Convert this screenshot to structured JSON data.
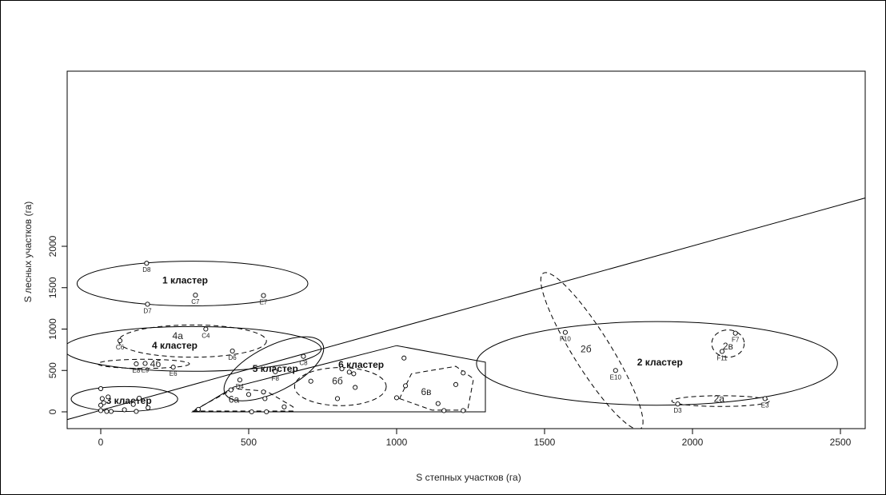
{
  "chart_data": {
    "type": "scatter",
    "xlabel": "S степных участков (га)",
    "ylabel": "S лесных участков (га)",
    "xlim": [
      -120,
      2600
    ],
    "ylim": [
      -100,
      2080
    ],
    "xticks": [
      "0",
      "500",
      "1000",
      "1500",
      "2000",
      "2500"
    ],
    "yticks": [
      "0",
      "500",
      "1000",
      "1500",
      "2000"
    ],
    "diagonal": [
      [
        -120,
        -100
      ],
      [
        2600,
        2600
      ]
    ],
    "points": [
      {
        "x": 155,
        "y": 1795,
        "label": "D8"
      },
      {
        "x": 320,
        "y": 1410,
        "label": "C7"
      },
      {
        "x": 550,
        "y": 1405,
        "label": "E7"
      },
      {
        "x": 158,
        "y": 1300,
        "label": "D7"
      },
      {
        "x": 355,
        "y": 1000,
        "label": "C4"
      },
      {
        "x": 65,
        "y": 860,
        "label": "C6"
      },
      {
        "x": 445,
        "y": 735,
        "label": "D6"
      },
      {
        "x": 120,
        "y": 580,
        "label": "E8"
      },
      {
        "x": 150,
        "y": 585,
        "label": "E9"
      },
      {
        "x": 245,
        "y": 540,
        "label": "E6"
      },
      {
        "x": 685,
        "y": 670,
        "label": "C8"
      },
      {
        "x": 590,
        "y": 485,
        "label": "F8"
      },
      {
        "x": 470,
        "y": 385,
        "label": "D4"
      },
      {
        "x": 1570,
        "y": 960,
        "label": "F10"
      },
      {
        "x": 2145,
        "y": 950,
        "label": "F7"
      },
      {
        "x": 2100,
        "y": 730,
        "label": "F11"
      },
      {
        "x": 1740,
        "y": 500,
        "label": "E10"
      },
      {
        "x": 1950,
        "y": 95,
        "label": "D3"
      },
      {
        "x": 2245,
        "y": 160,
        "label": "E3"
      },
      {
        "x": 0,
        "y": 280,
        "label": ""
      },
      {
        "x": 25,
        "y": 180,
        "label": ""
      },
      {
        "x": 5,
        "y": 160,
        "label": ""
      },
      {
        "x": 130,
        "y": 165,
        "label": ""
      },
      {
        "x": 10,
        "y": 110,
        "label": ""
      },
      {
        "x": 0,
        "y": 80,
        "label": ""
      },
      {
        "x": 110,
        "y": 90,
        "label": ""
      },
      {
        "x": 160,
        "y": 50,
        "label": ""
      },
      {
        "x": 80,
        "y": 25,
        "label": ""
      },
      {
        "x": 0,
        "y": 15,
        "label": ""
      },
      {
        "x": 20,
        "y": 5,
        "label": ""
      },
      {
        "x": 35,
        "y": 5,
        "label": ""
      },
      {
        "x": 120,
        "y": 5,
        "label": ""
      },
      {
        "x": 440,
        "y": 265,
        "label": ""
      },
      {
        "x": 550,
        "y": 240,
        "label": ""
      },
      {
        "x": 500,
        "y": 210,
        "label": ""
      },
      {
        "x": 555,
        "y": 160,
        "label": ""
      },
      {
        "x": 620,
        "y": 60,
        "label": ""
      },
      {
        "x": 330,
        "y": 30,
        "label": ""
      },
      {
        "x": 510,
        "y": 0,
        "label": ""
      },
      {
        "x": 560,
        "y": 0,
        "label": ""
      },
      {
        "x": 815,
        "y": 520,
        "label": ""
      },
      {
        "x": 840,
        "y": 480,
        "label": ""
      },
      {
        "x": 855,
        "y": 460,
        "label": ""
      },
      {
        "x": 710,
        "y": 370,
        "label": ""
      },
      {
        "x": 860,
        "y": 295,
        "label": ""
      },
      {
        "x": 800,
        "y": 160,
        "label": ""
      },
      {
        "x": 1025,
        "y": 650,
        "label": ""
      },
      {
        "x": 1030,
        "y": 315,
        "label": ""
      },
      {
        "x": 1000,
        "y": 170,
        "label": ""
      },
      {
        "x": 1140,
        "y": 100,
        "label": ""
      },
      {
        "x": 1160,
        "y": 15,
        "label": ""
      },
      {
        "x": 1225,
        "y": 470,
        "label": ""
      },
      {
        "x": 1200,
        "y": 330,
        "label": ""
      },
      {
        "x": 1225,
        "y": 15,
        "label": ""
      }
    ],
    "clusters": [
      {
        "label": "1 кластер",
        "shape": "ellipse",
        "style": "solid",
        "cx": 310,
        "cy": 1550,
        "rx": 390,
        "ry": 270,
        "text_at": [
          285,
          1590
        ],
        "bold": true
      },
      {
        "label": "4 кластер",
        "shape": "ellipse",
        "style": "solid",
        "cx": 310,
        "cy": 760,
        "rx": 435,
        "ry": 270,
        "text_at": [
          250,
          800
        ],
        "bold": true
      },
      {
        "label": "4а",
        "shape": "ellipse",
        "style": "dashed",
        "cx": 310,
        "cy": 855,
        "rx": 250,
        "ry": 195,
        "text_at": [
          260,
          920
        ],
        "bold": false
      },
      {
        "label": "4б",
        "shape": "ellipse",
        "style": "dashed",
        "cx": 145,
        "cy": 580,
        "rx": 155,
        "ry": 55,
        "text_at": [
          185,
          580
        ],
        "bold": false
      },
      {
        "label": "3 кластер",
        "shape": "ellipse",
        "style": "solid",
        "cx": 80,
        "cy": 155,
        "rx": 180,
        "ry": 150,
        "text_at": [
          95,
          135
        ],
        "bold": true
      },
      {
        "label": "5 кластер",
        "shape": "ellipse_rot",
        "style": "solid",
        "cx": 585,
        "cy": 520,
        "rx": 185,
        "ry": 85,
        "rot": -27,
        "text_at": [
          590,
          520
        ],
        "bold": true
      },
      {
        "label": "6 кластер",
        "shape": "polygon",
        "style": "solid",
        "pts": [
          [
            310,
            0
          ],
          [
            1300,
            0
          ],
          [
            1300,
            600
          ],
          [
            1000,
            800
          ],
          [
            450,
            300
          ]
        ],
        "text_at": [
          880,
          570
        ],
        "bold": true
      },
      {
        "label": "6а",
        "shape": "polygon",
        "style": "dashed",
        "pts": [
          [
            310,
            10
          ],
          [
            650,
            10
          ],
          [
            650,
            60
          ],
          [
            560,
            250
          ],
          [
            450,
            280
          ]
        ],
        "text_at": [
          450,
          150
        ],
        "bold": false
      },
      {
        "label": "6б",
        "shape": "ellipse",
        "style": "dashed",
        "cx": 810,
        "cy": 305,
        "rx": 155,
        "ry": 230,
        "text_at": [
          800,
          370
        ],
        "bold": false
      },
      {
        "label": "6в",
        "shape": "polygon",
        "style": "dashed",
        "pts": [
          [
            1010,
            160
          ],
          [
            1120,
            20
          ],
          [
            1240,
            20
          ],
          [
            1260,
            400
          ],
          [
            1200,
            550
          ],
          [
            1050,
            460
          ]
        ],
        "text_at": [
          1100,
          240
        ],
        "bold": false
      },
      {
        "label": "2 кластер",
        "shape": "ellipse",
        "style": "solid",
        "cx": 1880,
        "cy": 585,
        "rx": 610,
        "ry": 505,
        "text_at": [
          1890,
          600
        ],
        "bold": true
      },
      {
        "label": "2б",
        "shape": "ellipse_rot",
        "style": "dashed",
        "cx": 1660,
        "cy": 735,
        "rx": 310,
        "ry": 70,
        "rot": 58,
        "text_at": [
          1640,
          760
        ],
        "bold": false
      },
      {
        "label": "2в",
        "shape": "ellipse",
        "style": "dashed",
        "cx": 2120,
        "cy": 825,
        "rx": 55,
        "ry": 165,
        "text_at": [
          2120,
          790
        ],
        "bold": false
      },
      {
        "label": "2а",
        "shape": "ellipse",
        "style": "dashed",
        "cx": 2095,
        "cy": 130,
        "rx": 165,
        "ry": 65,
        "text_at": [
          2090,
          160
        ],
        "bold": false
      }
    ]
  }
}
